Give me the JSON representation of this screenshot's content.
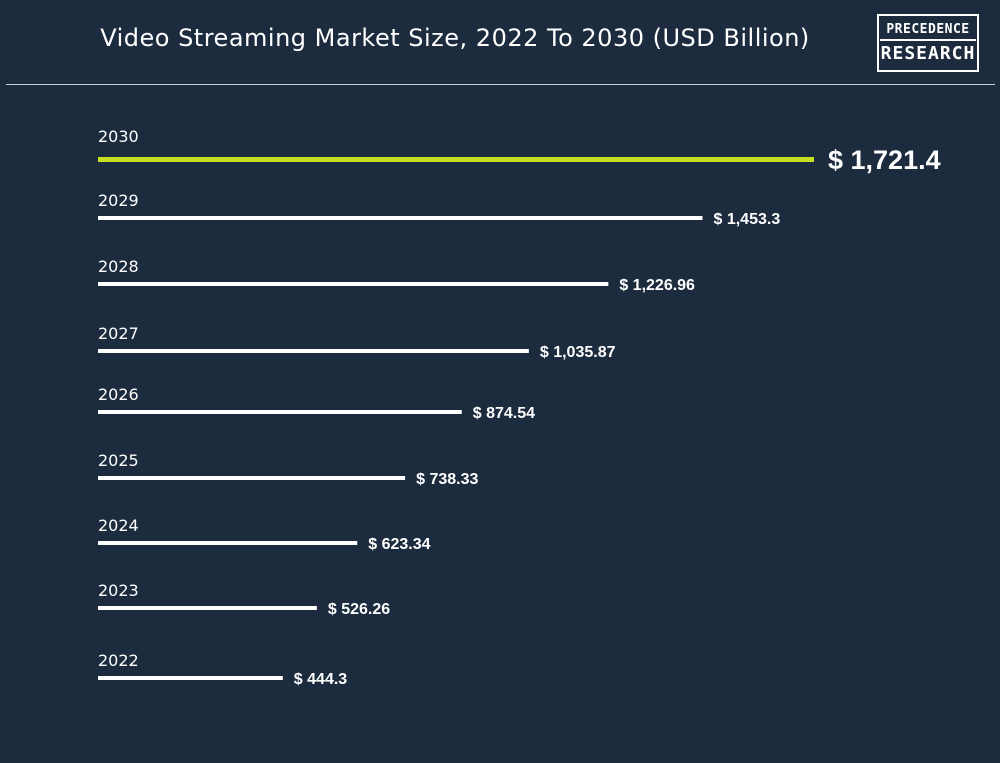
{
  "header": {
    "title": "Video Streaming Market Size, 2022 To 2030 (USD Billion)",
    "logo_line1": "PRECEDENCE",
    "logo_line2": "RESEARCH"
  },
  "colors": {
    "background": "#1c2b3d",
    "bar": "#ffffff",
    "highlight_bar": "#c6e021",
    "text": "#ffffff"
  },
  "chart_data": {
    "type": "bar",
    "orientation": "horizontal",
    "title": "Video Streaming Market Size, 2022 To 2030 (USD Billion)",
    "unit": "USD Billion",
    "categories": [
      "2030",
      "2029",
      "2028",
      "2027",
      "2026",
      "2025",
      "2024",
      "2023",
      "2022"
    ],
    "values": [
      1721.4,
      1453.3,
      1226.96,
      1035.87,
      874.54,
      738.33,
      623.34,
      526.26,
      444.3
    ],
    "value_labels": [
      "$ 1,721.4",
      "$ 1,453.3",
      "$ 1,226.96",
      "$ 1,035.87",
      "$ 874.54",
      "$ 738.33",
      "$ 623.34",
      "$ 526.26",
      "$ 444.3"
    ],
    "highlight_index": 0,
    "grid": false,
    "legend": "none"
  }
}
